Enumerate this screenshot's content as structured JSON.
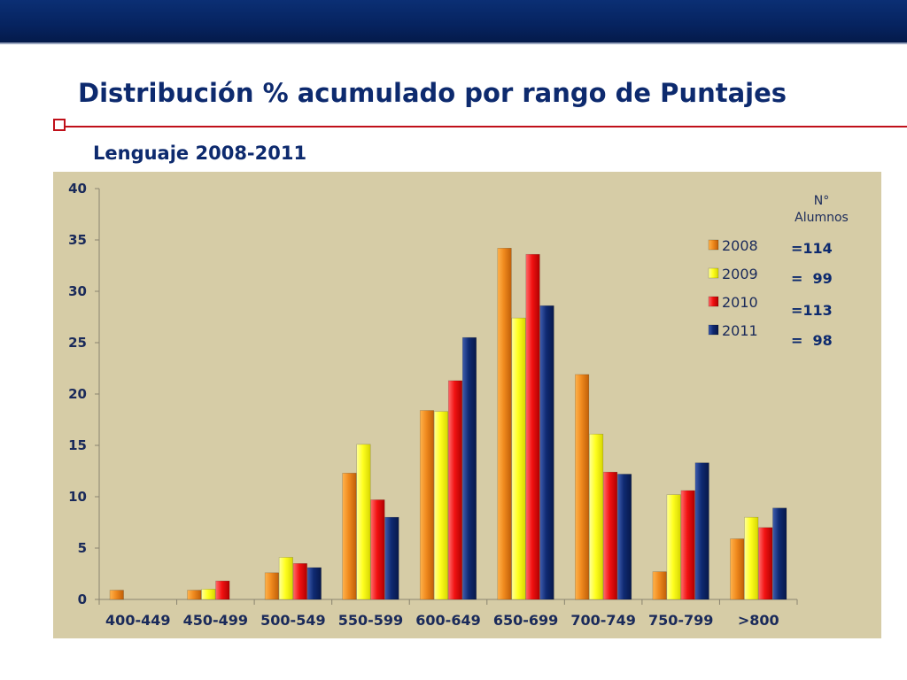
{
  "slide": {
    "title": "Distribución % acumulado por rango de Puntajes",
    "subtitle": "Lenguaje 2008-2011"
  },
  "note": {
    "header_line1": "N°",
    "header_line2": "Alumnos",
    "values": [
      "=114",
      "=  99",
      "=113",
      "=  98"
    ]
  },
  "colors": {
    "2008": "#f08a1e",
    "2009": "#ffff1f",
    "2010": "#f21212",
    "2011": "#0f2a72",
    "plot_bg": "#d6cca6",
    "header_bar": "#06235f",
    "accent_red": "#c0101a"
  },
  "chart_data": {
    "type": "bar",
    "title": "",
    "xlabel": "",
    "ylabel": "",
    "ylim": [
      0,
      40
    ],
    "yticks": [
      0,
      5,
      10,
      15,
      20,
      25,
      30,
      35,
      40
    ],
    "categories": [
      "400-449",
      "450-499",
      "500-549",
      "550-599",
      "600-649",
      "650-699",
      "700-749",
      "750-799",
      ">800"
    ],
    "legend_position": "right",
    "series": [
      {
        "name": "2008",
        "values": [
          0.9,
          0.9,
          2.6,
          12.3,
          18.4,
          34.2,
          21.9,
          2.7,
          5.9
        ]
      },
      {
        "name": "2009",
        "values": [
          0,
          1.0,
          4.1,
          15.1,
          18.3,
          27.4,
          16.1,
          10.2,
          8.0
        ]
      },
      {
        "name": "2010",
        "values": [
          0,
          1.8,
          3.5,
          9.7,
          21.3,
          33.6,
          12.4,
          10.6,
          7.0
        ]
      },
      {
        "name": "2011",
        "values": [
          0,
          0,
          3.1,
          8.0,
          25.5,
          28.6,
          12.2,
          13.3,
          8.9
        ]
      }
    ]
  }
}
